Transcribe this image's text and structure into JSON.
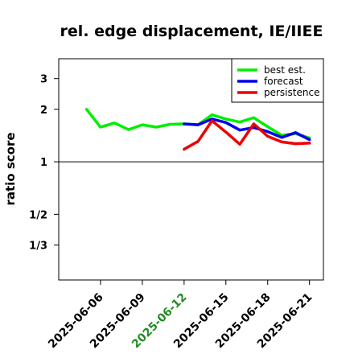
{
  "chart_data": {
    "type": "line",
    "title": "rel. edge displacement, IE/IIEE",
    "xlabel": "",
    "ylabel": "ratio score",
    "y_scale": "log2",
    "y_ticks": [
      {
        "value": 3,
        "label": "3"
      },
      {
        "value": 2,
        "label": "2"
      },
      {
        "value": 1,
        "label": "1"
      },
      {
        "value": 0.5,
        "label": "1/2"
      },
      {
        "value": 0.3333,
        "label": "1/3"
      }
    ],
    "ylim": [
      0.21,
      3.9
    ],
    "xlim": [
      "2025-06-03",
      "2025-06-22"
    ],
    "x_ticks": [
      {
        "date": "2025-06-06",
        "label": "2025-06-06",
        "color": "#000000"
      },
      {
        "date": "2025-06-09",
        "label": "2025-06-09",
        "color": "#000000"
      },
      {
        "date": "2025-06-12",
        "label": "2025-06-12",
        "color": "#228B22"
      },
      {
        "date": "2025-06-15",
        "label": "2025-06-15",
        "color": "#000000"
      },
      {
        "date": "2025-06-18",
        "label": "2025-06-18",
        "color": "#000000"
      },
      {
        "date": "2025-06-21",
        "label": "2025-06-21",
        "color": "#000000"
      }
    ],
    "reference_line": 1,
    "legend_position": "top-right",
    "series": [
      {
        "name": "best est.",
        "color": "#00ee00",
        "x": [
          "2025-06-05",
          "2025-06-06",
          "2025-06-07",
          "2025-06-08",
          "2025-06-09",
          "2025-06-10",
          "2025-06-11",
          "2025-06-12",
          "2025-06-13",
          "2025-06-14",
          "2025-06-15",
          "2025-06-16",
          "2025-06-17",
          "2025-06-18",
          "2025-06-19",
          "2025-06-20",
          "2025-06-21"
        ],
        "values": [
          2.0,
          1.58,
          1.67,
          1.53,
          1.63,
          1.58,
          1.64,
          1.65,
          1.63,
          1.86,
          1.76,
          1.69,
          1.79,
          1.59,
          1.42,
          1.45,
          1.37
        ]
      },
      {
        "name": "forecast",
        "color": "#0000ee",
        "x": [
          "2025-06-12",
          "2025-06-13",
          "2025-06-14",
          "2025-06-15",
          "2025-06-16",
          "2025-06-17",
          "2025-06-18",
          "2025-06-19",
          "2025-06-20",
          "2025-06-21"
        ],
        "values": [
          1.65,
          1.63,
          1.76,
          1.68,
          1.52,
          1.57,
          1.49,
          1.38,
          1.47,
          1.34
        ]
      },
      {
        "name": "persistence",
        "color": "#ee0000",
        "x": [
          "2025-06-12",
          "2025-06-13",
          "2025-06-14",
          "2025-06-15",
          "2025-06-16",
          "2025-06-17",
          "2025-06-18",
          "2025-06-19",
          "2025-06-20",
          "2025-06-21"
        ],
        "values": [
          1.18,
          1.31,
          1.72,
          1.48,
          1.26,
          1.65,
          1.4,
          1.3,
          1.27,
          1.28
        ]
      }
    ]
  }
}
